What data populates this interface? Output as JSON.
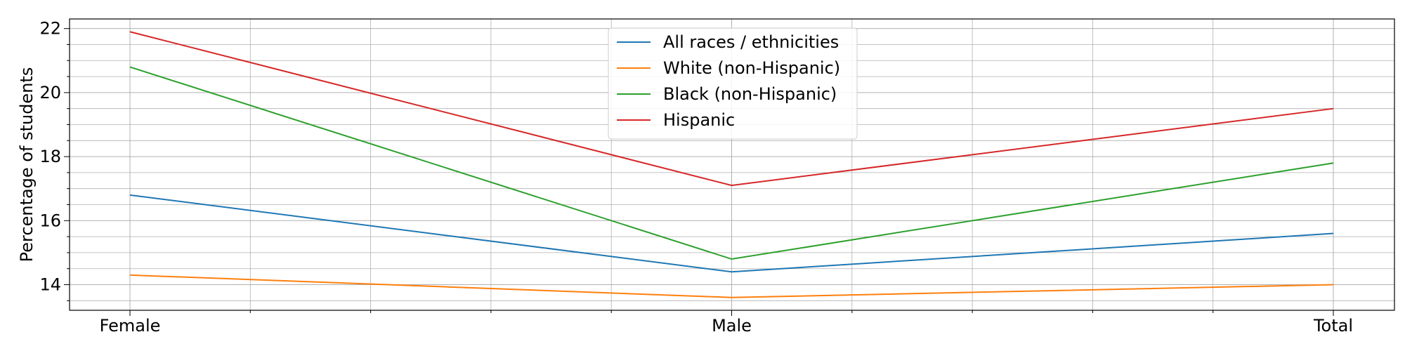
{
  "chart_data": {
    "type": "line",
    "title": "",
    "xlabel": "",
    "ylabel": "Percentage of students",
    "categories": [
      "Female",
      "Male",
      "Total"
    ],
    "ylim": [
      13.2,
      22.3
    ],
    "y_ticks": [
      "14",
      "16",
      "18",
      "20",
      "22"
    ],
    "grid": true,
    "minor_grid": true,
    "legend_position": "upper center",
    "series": [
      {
        "name": "All races / ethnicities",
        "color": "#1f77b4",
        "values": [
          16.8,
          14.4,
          15.6
        ]
      },
      {
        "name": "White (non-Hispanic)",
        "color": "#ff7f0e",
        "values": [
          14.3,
          13.6,
          14.0
        ]
      },
      {
        "name": "Black (non-Hispanic)",
        "color": "#2ca02c",
        "values": [
          20.8,
          14.8,
          17.8
        ]
      },
      {
        "name": "Hispanic",
        "color": "#d62728",
        "values": [
          21.9,
          17.1,
          19.5
        ]
      }
    ]
  }
}
